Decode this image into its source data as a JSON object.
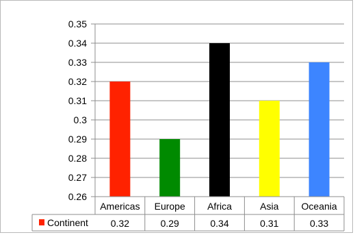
{
  "chart_data": {
    "type": "bar",
    "categories": [
      "Americas",
      "Europe",
      "Africa",
      "Asia",
      "Oceania"
    ],
    "series": [
      {
        "name": "Continent",
        "values": [
          0.32,
          0.29,
          0.34,
          0.31,
          0.33
        ]
      }
    ],
    "value_labels": [
      "0.32",
      "0.29",
      "0.34",
      "0.31",
      "0.33"
    ],
    "bar_colors": [
      "#ff2200",
      "#008a00",
      "#000000",
      "#ffff00",
      "#3d85ff"
    ],
    "legend_color": "#ff2200",
    "y_ticks": [
      "0.26",
      "0.27",
      "0.28",
      "0.29",
      "0.3",
      "0.31",
      "0.32",
      "0.33",
      "0.34",
      "0.35"
    ],
    "ylim": [
      0.26,
      0.35
    ],
    "grid": true,
    "legend": "data-table",
    "title": "",
    "xlabel": "",
    "ylabel": ""
  }
}
